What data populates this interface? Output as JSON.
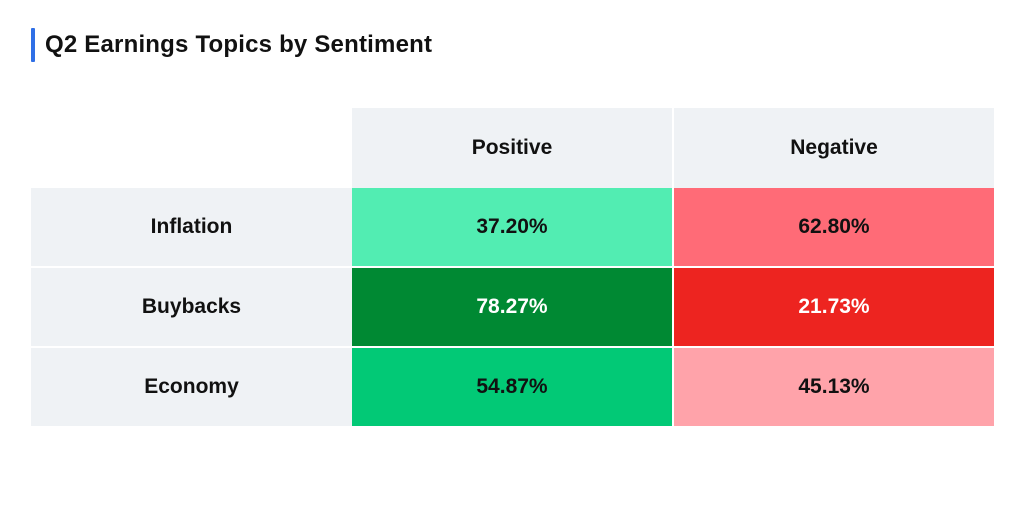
{
  "title": "Q2 Earnings Topics by Sentiment",
  "colors": {
    "accent": "#2f6fe6",
    "header_bg": "#eff2f5"
  },
  "chart_data": {
    "type": "heatmap",
    "title": "Q2 Earnings Topics by Sentiment",
    "columns": [
      "Positive",
      "Negative"
    ],
    "rows": [
      {
        "label": "Inflation",
        "values": [
          "37.20%",
          "62.80%"
        ],
        "colors": [
          "#52edb2",
          "#ff6b77"
        ],
        "text_colors": [
          "#111111",
          "#111111"
        ]
      },
      {
        "label": "Buybacks",
        "values": [
          "78.27%",
          "21.73%"
        ],
        "colors": [
          "#008933",
          "#ed2420"
        ],
        "text_colors": [
          "#ffffff",
          "#ffffff"
        ]
      },
      {
        "label": "Economy",
        "values": [
          "54.87%",
          "45.13%"
        ],
        "colors": [
          "#02c976",
          "#ffa3aa"
        ],
        "text_colors": [
          "#111111",
          "#111111"
        ]
      }
    ]
  }
}
